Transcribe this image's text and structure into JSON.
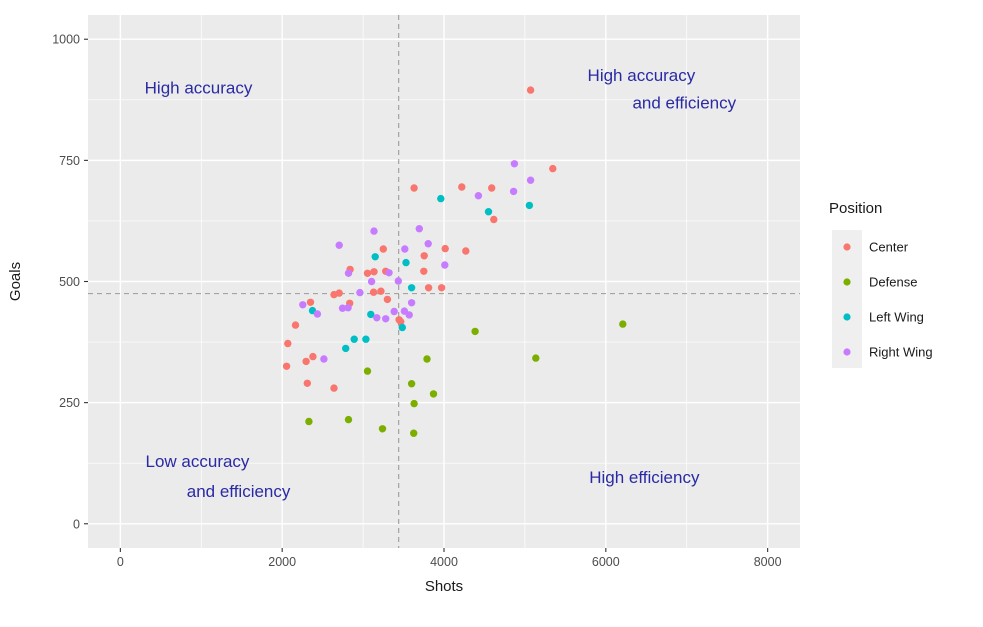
{
  "chart_data": {
    "type": "scatter",
    "xlabel": "Shots",
    "ylabel": "Goals",
    "x_ticks": [
      0,
      2000,
      4000,
      6000,
      8000
    ],
    "y_ticks": [
      0,
      250,
      500,
      750,
      1000
    ],
    "x_minor": [
      1000,
      3000,
      5000,
      7000
    ],
    "y_minor": [
      125,
      375,
      625,
      875
    ],
    "xlim": [
      -400,
      8400
    ],
    "ylim": [
      -50,
      1050
    ],
    "grid": true,
    "reference_lines": {
      "vline_x": 3440,
      "hline_y": 475,
      "style": "dashed"
    },
    "legend": {
      "title": "Position",
      "position": "right",
      "items": [
        {
          "label": "Center",
          "color": "#F8766D"
        },
        {
          "label": "Defense",
          "color": "#7CAE00"
        },
        {
          "label": "Left Wing",
          "color": "#00BFC4"
        },
        {
          "label": "Right Wing",
          "color": "#C77CFF"
        }
      ]
    },
    "annotations": [
      {
        "text": "High accuracy",
        "x": 966,
        "y": 900
      },
      {
        "text": "High accuracy",
        "x": 6440,
        "y": 926
      },
      {
        "text": "and efficiency",
        "x": 6970,
        "y": 869
      },
      {
        "text": "Low accuracy",
        "x": 953,
        "y": 130
      },
      {
        "text": "and efficiency",
        "x": 1461,
        "y": 68
      },
      {
        "text": "High efficiency",
        "x": 6476,
        "y": 97
      }
    ],
    "series": [
      {
        "name": "Center",
        "color": "#F8766D",
        "points": [
          [
            5070,
            895
          ],
          [
            5345,
            733
          ],
          [
            4220,
            695
          ],
          [
            4590,
            693
          ],
          [
            3630,
            693
          ],
          [
            4615,
            628
          ],
          [
            3250,
            567
          ],
          [
            4015,
            568
          ],
          [
            4270,
            563
          ],
          [
            3755,
            553
          ],
          [
            3750,
            521
          ],
          [
            2840,
            525
          ],
          [
            3055,
            517
          ],
          [
            3135,
            520
          ],
          [
            3280,
            521
          ],
          [
            3810,
            487
          ],
          [
            3970,
            487
          ],
          [
            3445,
            421
          ],
          [
            3465,
            417
          ],
          [
            3300,
            463
          ],
          [
            3130,
            478
          ],
          [
            3220,
            480
          ],
          [
            2640,
            473
          ],
          [
            2705,
            476
          ],
          [
            2835,
            455
          ],
          [
            2350,
            457
          ],
          [
            2165,
            410
          ],
          [
            2070,
            372
          ],
          [
            2055,
            325
          ],
          [
            2295,
            335
          ],
          [
            2380,
            345
          ],
          [
            2310,
            290
          ],
          [
            2640,
            280
          ]
        ]
      },
      {
        "name": "Defense",
        "color": "#7CAE00",
        "points": [
          [
            6210,
            412
          ],
          [
            5135,
            342
          ],
          [
            4385,
            397
          ],
          [
            3790,
            340
          ],
          [
            3600,
            289
          ],
          [
            3870,
            268
          ],
          [
            3630,
            248
          ],
          [
            3240,
            196
          ],
          [
            3625,
            187
          ],
          [
            2330,
            211
          ],
          [
            2820,
            215
          ],
          [
            3055,
            315
          ]
        ]
      },
      {
        "name": "Left Wing",
        "color": "#00BFC4",
        "points": [
          [
            3960,
            671
          ],
          [
            5055,
            657
          ],
          [
            4550,
            644
          ],
          [
            3530,
            539
          ],
          [
            3150,
            551
          ],
          [
            3600,
            487
          ],
          [
            3485,
            405
          ],
          [
            3095,
            432
          ],
          [
            2890,
            381
          ],
          [
            3035,
            381
          ],
          [
            2785,
            362
          ],
          [
            2375,
            440
          ]
        ]
      },
      {
        "name": "Right Wing",
        "color": "#C77CFF",
        "points": [
          [
            4870,
            743
          ],
          [
            5070,
            709
          ],
          [
            4860,
            686
          ],
          [
            4425,
            677
          ],
          [
            3695,
            609
          ],
          [
            3805,
            578
          ],
          [
            3135,
            604
          ],
          [
            2705,
            575
          ],
          [
            3515,
            567
          ],
          [
            4010,
            534
          ],
          [
            3435,
            501
          ],
          [
            2820,
            517
          ],
          [
            3105,
            500
          ],
          [
            2960,
            477
          ],
          [
            3320,
            518
          ],
          [
            2745,
            445
          ],
          [
            2815,
            446
          ],
          [
            2255,
            452
          ],
          [
            2435,
            433
          ],
          [
            2515,
            340
          ],
          [
            3170,
            425
          ],
          [
            3280,
            423
          ],
          [
            3385,
            438
          ],
          [
            3510,
            439
          ],
          [
            3570,
            431
          ],
          [
            3600,
            456
          ]
        ]
      }
    ]
  },
  "style": {
    "panel_bg": "#EBEBEB",
    "grid_color": "#FFFFFF",
    "tick_label_color": "#4D4D4D",
    "axis_title_color": "#1A1A1A",
    "annotation_color": "#2A2AA5",
    "dashed_line_color": "#9B9B9B",
    "legend_key_bg": "#EFEFEF",
    "point_radius": 3.7
  }
}
